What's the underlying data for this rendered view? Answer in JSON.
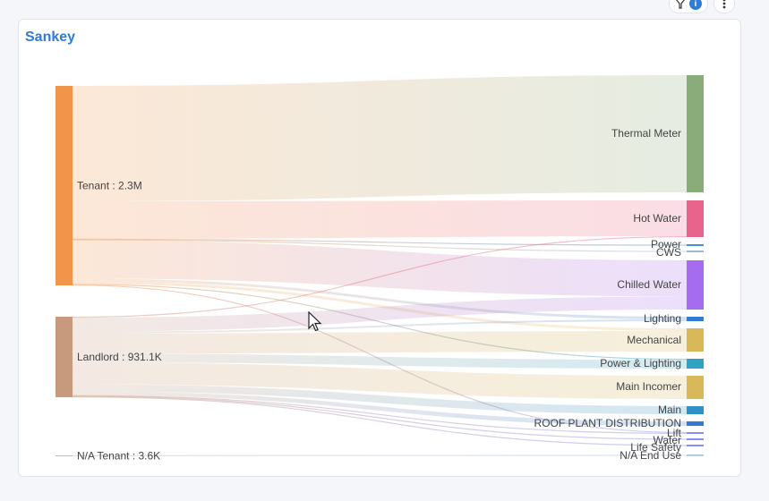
{
  "card": {
    "title": "Sankey"
  },
  "toolbar": {
    "info_badge": "i"
  },
  "chart_data": {
    "type": "sankey",
    "sources": [
      {
        "name": "Tenant",
        "value_label": "2.3M",
        "value": 2300000,
        "color": "#f0954a"
      },
      {
        "name": "Landlord",
        "value_label": "931.1K",
        "value": 931100,
        "color": "#c79a7d"
      },
      {
        "name": "N/A Tenant",
        "value_label": "3.6K",
        "value": 3600,
        "color": "#a8c4e0"
      }
    ],
    "targets": [
      {
        "name": "Thermal Meter",
        "color": "#8aab7a"
      },
      {
        "name": "Hot Water",
        "color": "#e8648c"
      },
      {
        "name": "Power",
        "color": "#4a8fd6"
      },
      {
        "name": "CWS",
        "color": "#9fb7d6"
      },
      {
        "name": "Chilled Water",
        "color": "#a56cf0"
      },
      {
        "name": "Lighting",
        "color": "#2f7bd6"
      },
      {
        "name": "Mechanical",
        "color": "#d9b85a"
      },
      {
        "name": "Power & Lighting",
        "color": "#2ea3c4"
      },
      {
        "name": "Main Incomer",
        "color": "#d9b85a"
      },
      {
        "name": "Main",
        "color": "#2e90c4"
      },
      {
        "name": "ROOF PLANT DISTRIBUTION",
        "color": "#2f7bd6"
      },
      {
        "name": "Lift",
        "color": "#8a8ef0"
      },
      {
        "name": "Water",
        "color": "#8a8ef0"
      },
      {
        "name": "Life Safety",
        "color": "#8a8ef0"
      },
      {
        "name": "N/A End Use",
        "color": "#a8c4e0"
      }
    ],
    "links": [
      {
        "source": "Tenant",
        "target": "Thermal Meter",
        "value": 1320000
      },
      {
        "source": "Tenant",
        "target": "Hot Water",
        "value": 430000
      },
      {
        "source": "Tenant",
        "target": "Power",
        "value": 8000
      },
      {
        "source": "Tenant",
        "target": "CWS",
        "value": 6000
      },
      {
        "source": "Tenant",
        "target": "Chilled Water",
        "value": 440000
      },
      {
        "source": "Tenant",
        "target": "Lighting",
        "value": 30000
      },
      {
        "source": "Tenant",
        "target": "Mechanical",
        "value": 30000
      },
      {
        "source": "Tenant",
        "target": "Power & Lighting",
        "value": 12000
      },
      {
        "source": "Tenant",
        "target": "Lift",
        "value": 6000
      },
      {
        "source": "Landlord",
        "target": "Hot Water",
        "value": 10000
      },
      {
        "source": "Landlord",
        "target": "Chilled Water",
        "value": 160000
      },
      {
        "source": "Landlord",
        "target": "Lighting",
        "value": 20000
      },
      {
        "source": "Landlord",
        "target": "Mechanical",
        "value": 230000
      },
      {
        "source": "Landlord",
        "target": "Power & Lighting",
        "value": 100000
      },
      {
        "source": "Landlord",
        "target": "Main Incomer",
        "value": 250000
      },
      {
        "source": "Landlord",
        "target": "Main",
        "value": 80000
      },
      {
        "source": "Landlord",
        "target": "ROOF PLANT DISTRIBUTION",
        "value": 45000
      },
      {
        "source": "Landlord",
        "target": "Lift",
        "value": 8000
      },
      {
        "source": "Landlord",
        "target": "Water",
        "value": 8000
      },
      {
        "source": "Landlord",
        "target": "Life Safety",
        "value": 6000
      },
      {
        "source": "N/A Tenant",
        "target": "N/A End Use",
        "value": 3600
      }
    ]
  }
}
